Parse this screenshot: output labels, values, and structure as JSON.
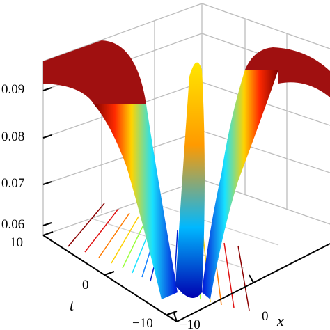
{
  "chart_data": {
    "type": "surface",
    "projection": "3d-perspective",
    "xlabel": "x",
    "ylabel": "t",
    "zlabel": "",
    "x_ticks": [
      "−10",
      "0"
    ],
    "t_ticks": [
      "10",
      "0",
      "−10"
    ],
    "z_ticks": [
      "0.06",
      "0.07",
      "0.08",
      "0.09"
    ],
    "xlim": [
      -10,
      10
    ],
    "tlim": [
      -10,
      10
    ],
    "zlim": [
      0.058,
      0.097
    ],
    "grid": true,
    "colormap": "jet",
    "contour_projection": "floor",
    "surface": {
      "x": [
        -10,
        -8,
        -6,
        -4,
        -3,
        -2,
        -1,
        0,
        1,
        2,
        3,
        4,
        6,
        8,
        10
      ],
      "z_profile": [
        0.095,
        0.094,
        0.091,
        0.082,
        0.074,
        0.064,
        0.072,
        0.093,
        0.072,
        0.064,
        0.074,
        0.082,
        0.091,
        0.094,
        0.095
      ],
      "note_t_dependence": "none"
    },
    "colors": {
      "low": "#00008f",
      "mid": "#00ffff",
      "high_mid": "#ffff00",
      "high": "#800000"
    }
  }
}
